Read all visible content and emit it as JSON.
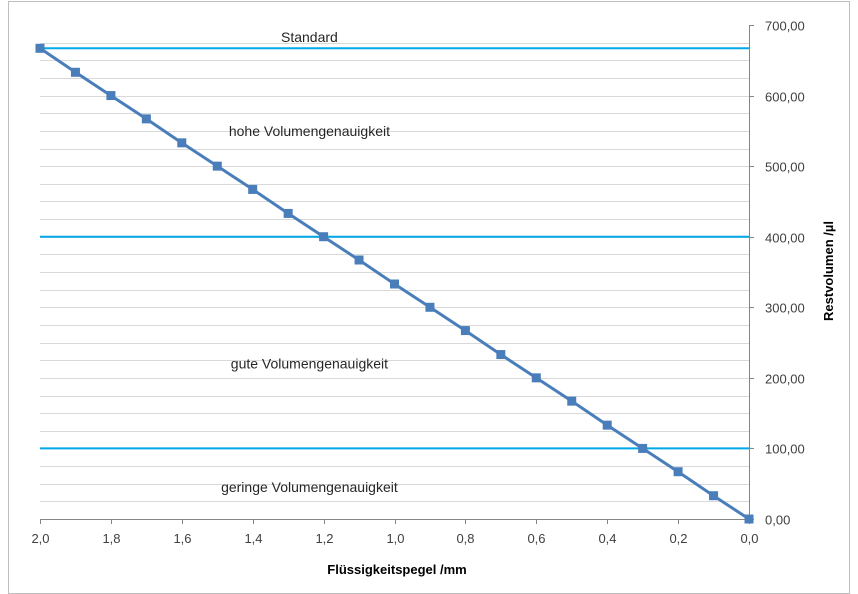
{
  "chart_data": {
    "type": "line",
    "title": "",
    "xlabel": "Flüssigkeitspegel /mm",
    "ylabel": "Restvolumen /µl",
    "xlim": [
      2.0,
      0.0
    ],
    "x_reversed": true,
    "ylim": [
      0,
      700
    ],
    "y_axis_side": "right",
    "grid": true,
    "x_ticks": [
      "2,0",
      "1,8",
      "1,6",
      "1,4",
      "1,2",
      "1,0",
      "0,8",
      "0,6",
      "0,4",
      "0,2",
      "0,0"
    ],
    "x_tick_values": [
      2.0,
      1.8,
      1.6,
      1.4,
      1.2,
      1.0,
      0.8,
      0.6,
      0.4,
      0.2,
      0.0
    ],
    "y_ticks": [
      "0,00",
      "100,00",
      "200,00",
      "300,00",
      "400,00",
      "500,00",
      "600,00",
      "700,00"
    ],
    "y_tick_values": [
      0,
      100,
      200,
      300,
      400,
      500,
      600,
      700
    ],
    "series": [
      {
        "x": [
          2.0,
          1.9,
          1.8,
          1.7,
          1.6,
          1.5,
          1.4,
          1.3,
          1.2,
          1.1,
          1.0,
          0.9,
          0.8,
          0.7,
          0.6,
          0.5,
          0.4,
          0.3,
          0.2,
          0.1,
          0.0
        ],
        "values": [
          667,
          633,
          600,
          567,
          533,
          500,
          467,
          433,
          400,
          367,
          333,
          300,
          267,
          233,
          200,
          167,
          133,
          100,
          67,
          33,
          0
        ],
        "color": "#4a7ebb"
      }
    ],
    "thresholds": [
      {
        "value": 667,
        "color": "#00a8e8"
      },
      {
        "value": 400,
        "color": "#00a8e8"
      },
      {
        "value": 100,
        "color": "#00a8e8"
      }
    ],
    "annotations": [
      {
        "text": "Standard",
        "x": 1.24,
        "y": 683
      },
      {
        "text": "hohe Volumengenauigkeit",
        "x": 1.24,
        "y": 550
      },
      {
        "text": "gute Volumengenauigkeit",
        "x": 1.24,
        "y": 220
      },
      {
        "text": "geringe Volumengenauigkeit",
        "x": 1.24,
        "y": 45
      }
    ]
  }
}
